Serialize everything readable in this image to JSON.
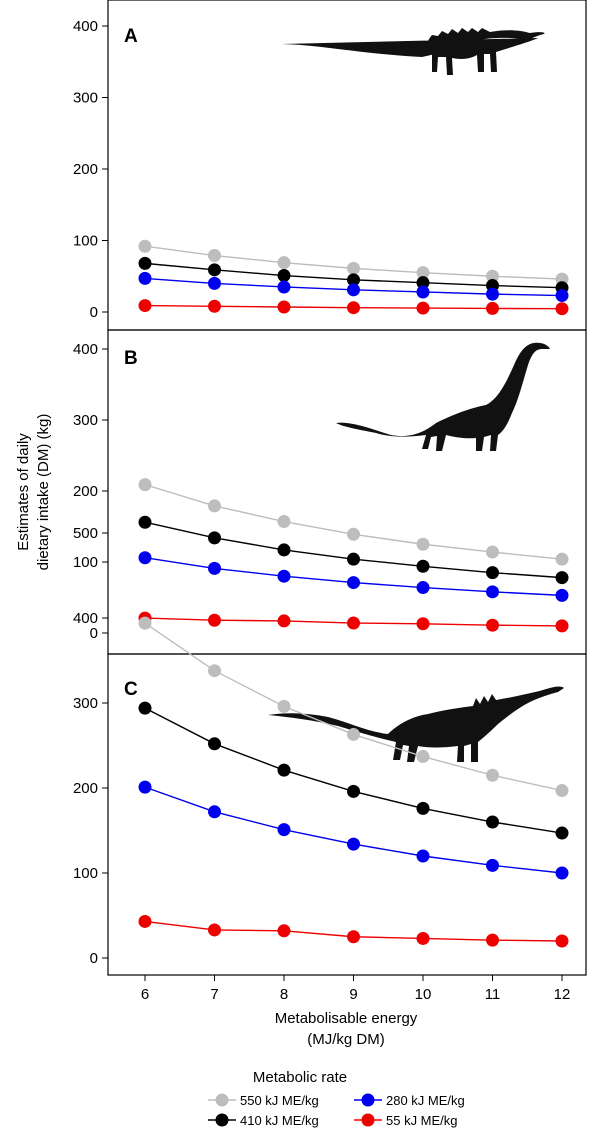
{
  "figure": {
    "ylabel_line1": "Estimates of daily",
    "ylabel_line2": "dietary intake (DM) (kg)",
    "xlabel_line1": "Metabolisable energy",
    "xlabel_line2": "(MJ/kg DM)",
    "legend_title": "Metabolic rate"
  },
  "legend": [
    {
      "label": "550 kJ ME/kg",
      "color": "#bdbdbd"
    },
    {
      "label": "410 kJ ME/kg",
      "color": "#000000"
    },
    {
      "label": "280 kJ ME/kg",
      "color": "#0000ee"
    },
    {
      "label": "55 kJ ME/kg",
      "color": "#ee0000"
    }
  ],
  "chart_data": [
    {
      "type": "line",
      "panel": "A",
      "x": [
        6,
        7,
        8,
        9,
        10,
        11,
        12
      ],
      "ylim": [
        0,
        400
      ],
      "yticks": [
        0,
        100,
        200,
        300,
        400
      ],
      "xticks": [
        6,
        7,
        8,
        9,
        10,
        11,
        12
      ],
      "silhouette": "sauropod-dinosaur",
      "series": [
        {
          "name": "550 kJ ME/kg",
          "color": "#bdbdbd",
          "values": [
            92,
            79,
            69,
            61,
            55,
            50,
            46
          ]
        },
        {
          "name": "410 kJ ME/kg",
          "color": "#000000",
          "values": [
            68,
            59,
            51,
            45,
            41,
            37,
            34
          ]
        },
        {
          "name": "280 kJ ME/kg",
          "color": "#0000ee",
          "values": [
            47,
            40,
            35,
            31,
            28,
            25,
            23
          ]
        },
        {
          "name": "55 kJ ME/kg",
          "color": "#ee0000",
          "values": [
            9,
            8,
            7,
            6,
            5.5,
            5,
            4.6
          ]
        }
      ]
    },
    {
      "type": "line",
      "panel": "B",
      "x": [
        6,
        7,
        8,
        9,
        10,
        11,
        12
      ],
      "ylim": [
        0,
        400
      ],
      "yticks": [
        0,
        100,
        200,
        300,
        400
      ],
      "xticks": [
        6,
        7,
        8,
        9,
        10,
        11,
        12
      ],
      "silhouette": "brachiosaur-dinosaur",
      "series": [
        {
          "name": "550 kJ ME/kg",
          "color": "#bdbdbd",
          "values": [
            209,
            179,
            157,
            139,
            125,
            114,
            104
          ]
        },
        {
          "name": "410 kJ ME/kg",
          "color": "#000000",
          "values": [
            156,
            134,
            117,
            104,
            94,
            85,
            78
          ]
        },
        {
          "name": "280 kJ ME/kg",
          "color": "#0000ee",
          "values": [
            106,
            91,
            80,
            71,
            64,
            58,
            53
          ]
        },
        {
          "name": "55 kJ ME/kg",
          "color": "#ee0000",
          "values": [
            21,
            18,
            17,
            14,
            13,
            11,
            10
          ]
        }
      ]
    },
    {
      "type": "line",
      "panel": "C",
      "x": [
        6,
        7,
        8,
        9,
        10,
        11,
        12
      ],
      "ylim": [
        0,
        500
      ],
      "yticks": [
        0,
        100,
        200,
        300,
        400,
        500
      ],
      "xticks": [
        6,
        7,
        8,
        9,
        10,
        11,
        12
      ],
      "silhouette": "long-necked-titanosaur-dinosaur",
      "series": [
        {
          "name": "550 kJ ME/kg",
          "color": "#bdbdbd",
          "values": [
            394,
            338,
            296,
            263,
            237,
            215,
            197
          ]
        },
        {
          "name": "410 kJ ME/kg",
          "color": "#000000",
          "values": [
            294,
            252,
            221,
            196,
            176,
            160,
            147
          ]
        },
        {
          "name": "280 kJ ME/kg",
          "color": "#0000ee",
          "values": [
            201,
            172,
            151,
            134,
            120,
            109,
            100
          ]
        },
        {
          "name": "55 kJ ME/kg",
          "color": "#ee0000",
          "values": [
            43,
            33,
            32,
            25,
            23,
            21,
            20
          ]
        }
      ]
    }
  ]
}
